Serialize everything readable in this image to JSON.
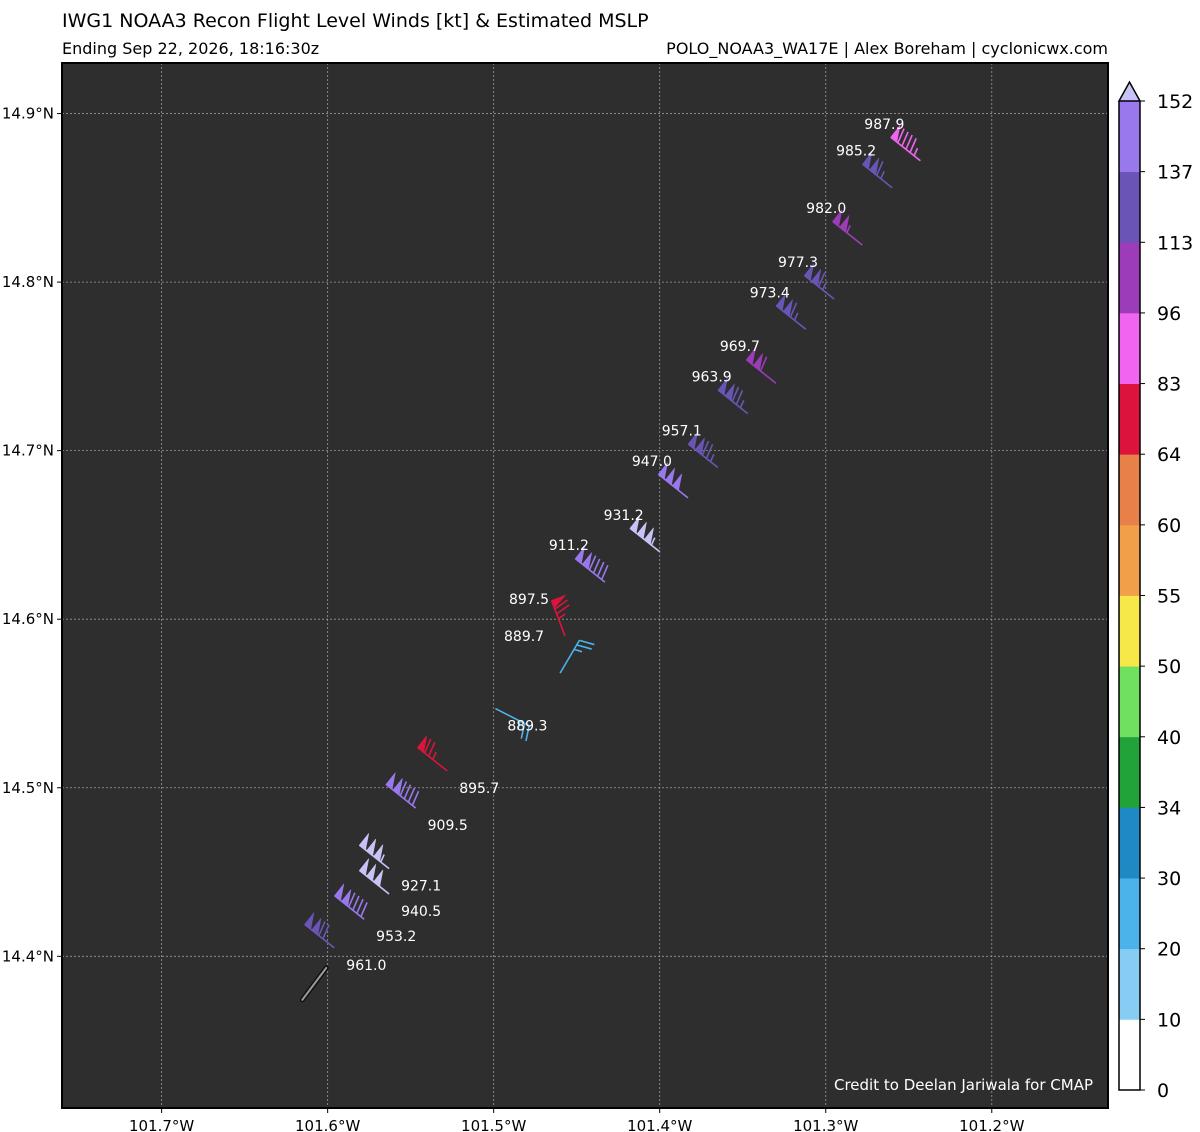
{
  "header": {
    "title": "IWG1 NOAA3 Recon Flight Level Winds [kt] & Estimated MSLP",
    "subtitle_left": "Ending Sep 22, 2026, 18:16:30z",
    "subtitle_right": "POLO_NOAA3_WA17E | Alex Boreham | cyclonicwx.com"
  },
  "credit": "Credit to Deelan Jariwala for CMAP",
  "colors": {
    "plot_background": "#2e2e2e",
    "grid": "#9a9a9a",
    "label_text": "#ffffff"
  },
  "chart_data": {
    "type": "scatter",
    "xlim": [
      -101.76,
      -101.13
    ],
    "ylim": [
      14.31,
      14.93
    ],
    "x_ticks": [
      -101.7,
      -101.6,
      -101.5,
      -101.4,
      -101.3,
      -101.2
    ],
    "x_tick_labels": [
      "101.7°W",
      "101.6°W",
      "101.5°W",
      "101.4°W",
      "101.3°W",
      "101.2°W"
    ],
    "y_ticks": [
      14.4,
      14.5,
      14.6,
      14.7,
      14.8,
      14.9
    ],
    "y_tick_labels": [
      "14.4°N",
      "14.5°N",
      "14.6°N",
      "14.7°N",
      "14.8°N",
      "14.9°N"
    ],
    "grid": true,
    "colorbar": {
      "bounds": [
        0,
        10,
        20,
        30,
        34,
        40,
        50,
        55,
        60,
        64,
        83,
        96,
        113,
        137,
        152
      ],
      "tick_labels": [
        "0",
        "10",
        "20",
        "30",
        "34",
        "40",
        "50",
        "55",
        "60",
        "64",
        "83",
        "96",
        "113",
        "137",
        "152"
      ],
      "colors": [
        "#ffffff",
        "#87cdf3",
        "#4cb3ea",
        "#1d8ac6",
        "#22a33a",
        "#70e060",
        "#f7e84a",
        "#f29f4a",
        "#e8804a",
        "#dc143c",
        "#f065f0",
        "#9c3cb8",
        "#6a55b7",
        "#9878ec",
        "#bcb6f5"
      ],
      "extend_color": "#c8c3f7"
    },
    "observations": [
      {
        "lon": -101.596,
        "lat": 14.405,
        "mslp": "961.0",
        "speed": 121
      },
      {
        "lon": -101.578,
        "lat": 14.422,
        "mslp": "953.2",
        "speed": 142
      },
      {
        "lon": -101.563,
        "lat": 14.437,
        "mslp": "940.5",
        "speed": 152
      },
      {
        "lon": -101.563,
        "lat": 14.452,
        "mslp": "927.1",
        "speed": 155
      },
      {
        "lon": -101.547,
        "lat": 14.488,
        "mslp": "909.5",
        "speed": 138
      },
      {
        "lon": -101.528,
        "lat": 14.51,
        "mslp": "895.7",
        "speed": 75
      },
      {
        "lon": -101.499,
        "lat": 14.547,
        "mslp": "889.3",
        "speed": 25
      },
      {
        "lon": -101.46,
        "lat": 14.568,
        "mslp": "889.7",
        "speed": 25
      },
      {
        "lon": -101.457,
        "lat": 14.59,
        "mslp": "897.5",
        "speed": 75
      },
      {
        "lon": -101.433,
        "lat": 14.622,
        "mslp": "911.2",
        "speed": 140
      },
      {
        "lon": -101.4,
        "lat": 14.64,
        "mslp": "931.2",
        "speed": 155
      },
      {
        "lon": -101.383,
        "lat": 14.672,
        "mslp": "947.0",
        "speed": 150
      },
      {
        "lon": -101.365,
        "lat": 14.69,
        "mslp": "957.1",
        "speed": 125
      },
      {
        "lon": -101.347,
        "lat": 14.722,
        "mslp": "963.9",
        "speed": 125
      },
      {
        "lon": -101.33,
        "lat": 14.74,
        "mslp": "969.7",
        "speed": 110
      },
      {
        "lon": -101.312,
        "lat": 14.772,
        "mslp": "973.4",
        "speed": 115
      },
      {
        "lon": -101.295,
        "lat": 14.79,
        "mslp": "977.3",
        "speed": 115
      },
      {
        "lon": -101.278,
        "lat": 14.822,
        "mslp": "982.0",
        "speed": 105
      },
      {
        "lon": -101.26,
        "lat": 14.856,
        "mslp": "985.2",
        "speed": 115
      },
      {
        "lon": -101.243,
        "lat": 14.872,
        "mslp": "987.9",
        "speed": 95
      }
    ]
  }
}
